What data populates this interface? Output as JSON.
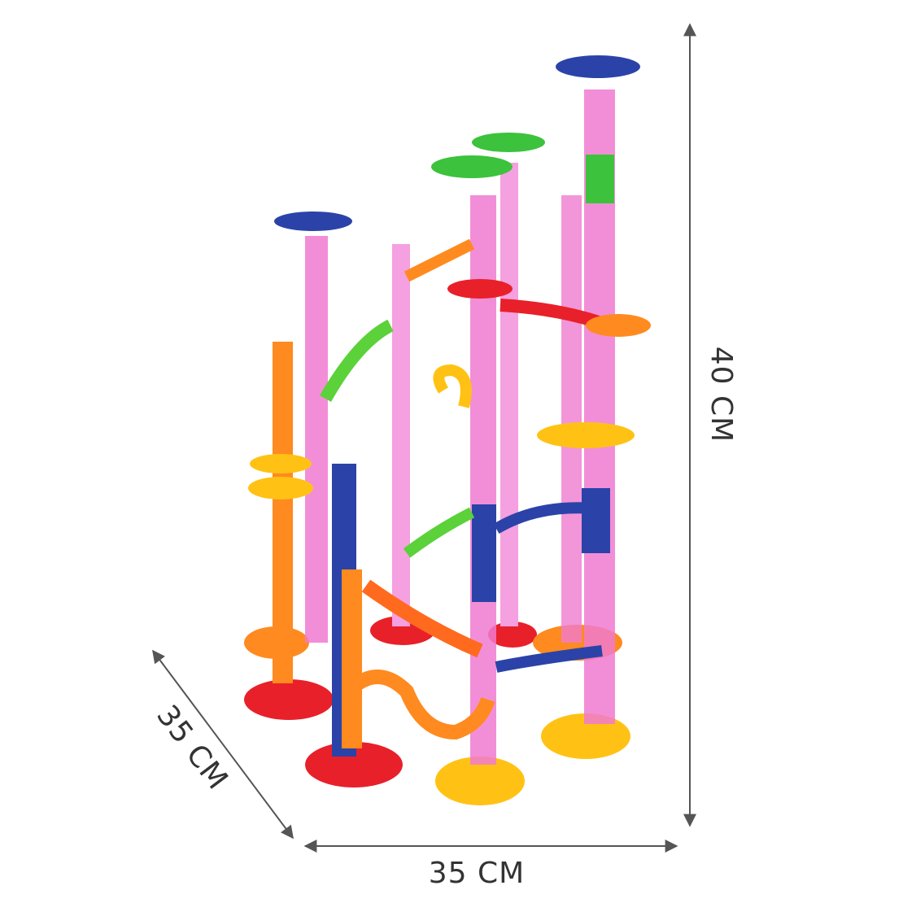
{
  "dimensions": {
    "height": "40 CM",
    "depth": "35 CM",
    "width": "35 CM"
  }
}
